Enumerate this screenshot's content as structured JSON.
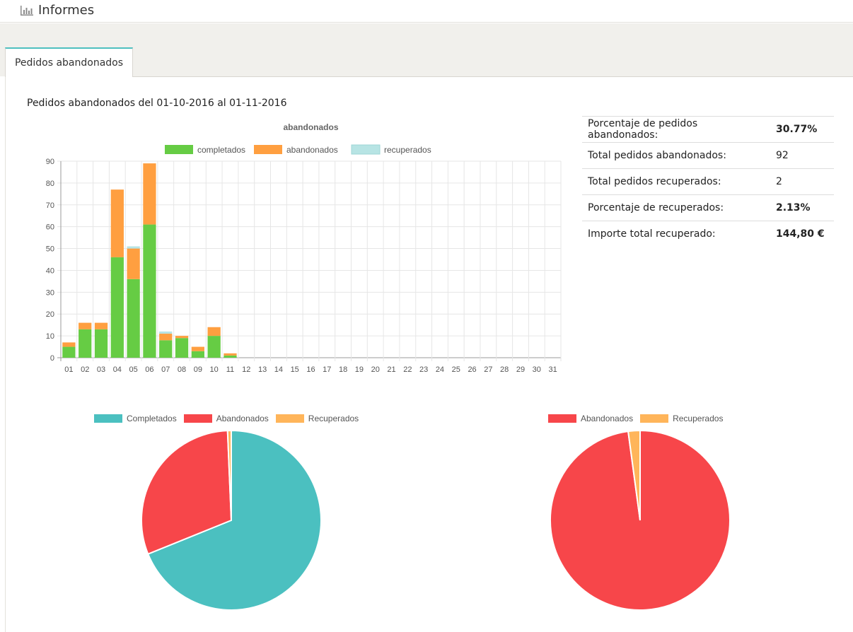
{
  "header": {
    "title": "Informes",
    "icon": "bar-chart-icon"
  },
  "tabs": [
    {
      "label": "Pedidos abandonados"
    }
  ],
  "report": {
    "title": "Pedidos abandonados del 01-10-2016 al 01-11-2016"
  },
  "stats": [
    {
      "label": "Porcentaje de pedidos abandonados:",
      "value": "30.77%",
      "bold": true
    },
    {
      "label": "Total pedidos abandonados:",
      "value": "92",
      "bold": false
    },
    {
      "label": "Total pedidos recuperados:",
      "value": "2",
      "bold": false
    },
    {
      "label": "Porcentaje de recuperados:",
      "value": "2.13%",
      "bold": true
    },
    {
      "label": "Importe total recuperado:",
      "value": "144,80 €",
      "bold": true
    }
  ],
  "colors": {
    "completados": "#66cc44",
    "abandonados": "#ff9f40",
    "recuperados": "#b7e4e4",
    "pie_completados": "#4bc0c0",
    "pie_abandonados": "#f7464a",
    "pie_recuperados": "#ffb55a"
  },
  "chart_data": [
    {
      "type": "bar",
      "stacked": true,
      "title": "abandonados",
      "categories": [
        "01",
        "02",
        "03",
        "04",
        "05",
        "06",
        "07",
        "08",
        "09",
        "10",
        "11",
        "12",
        "13",
        "14",
        "15",
        "16",
        "17",
        "18",
        "19",
        "20",
        "21",
        "22",
        "23",
        "24",
        "25",
        "26",
        "27",
        "28",
        "29",
        "30",
        "31"
      ],
      "series": [
        {
          "name": "completados",
          "values": [
            5,
            13,
            13,
            46,
            36,
            61,
            8,
            9,
            3,
            10,
            1,
            0,
            0,
            0,
            0,
            0,
            0,
            0,
            0,
            0,
            0,
            0,
            0,
            0,
            0,
            0,
            0,
            0,
            0,
            0,
            0
          ]
        },
        {
          "name": "abandonados",
          "values": [
            2,
            3,
            3,
            31,
            14,
            28,
            3,
            1,
            2,
            4,
            1,
            0,
            0,
            0,
            0,
            0,
            0,
            0,
            0,
            0,
            0,
            0,
            0,
            0,
            0,
            0,
            0,
            0,
            0,
            0,
            0
          ]
        },
        {
          "name": "recuperados",
          "values": [
            0,
            0,
            0,
            0,
            1,
            0,
            1,
            0,
            0,
            0,
            0,
            0,
            0,
            0,
            0,
            0,
            0,
            0,
            0,
            0,
            0,
            0,
            0,
            0,
            0,
            0,
            0,
            0,
            0,
            0,
            0
          ]
        }
      ],
      "ylim": [
        0,
        90
      ],
      "yticks": [
        0,
        10,
        20,
        30,
        40,
        50,
        60,
        70,
        80,
        90
      ],
      "legend": "top",
      "grid": true
    },
    {
      "type": "pie",
      "labels": [
        "Completados",
        "Abandonados",
        "Recuperados"
      ],
      "values": [
        208,
        92,
        2
      ],
      "legend": "top"
    },
    {
      "type": "pie",
      "labels": [
        "Abandonados",
        "Recuperados"
      ],
      "values": [
        92,
        2
      ],
      "legend": "top"
    }
  ]
}
